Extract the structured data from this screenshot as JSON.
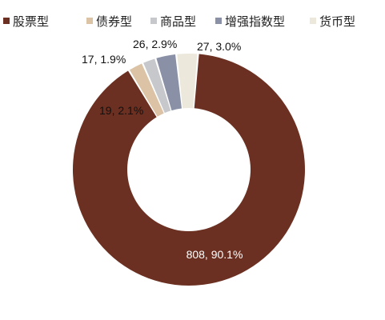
{
  "chart_data": {
    "type": "pie",
    "donut": true,
    "legend_position": "top",
    "series": [
      {
        "name": "股票型",
        "value": 808,
        "percent": "90.1%",
        "label": "808, 90.1%",
        "color": "#6b3021"
      },
      {
        "name": "债券型",
        "value": 19,
        "percent": "2.1%",
        "label": "19, 2.1%",
        "color": "#dcc3a6"
      },
      {
        "name": "商品型",
        "value": 17,
        "percent": "1.9%",
        "label": "17, 1.9%",
        "color": "#c6c8cb"
      },
      {
        "name": "增强指数型",
        "value": 26,
        "percent": "2.9%",
        "label": "26, 2.9%",
        "color": "#8a90a6"
      },
      {
        "name": "货币型",
        "value": 27,
        "percent": "3.0%",
        "label": "27, 3.0%",
        "color": "#ece8dc"
      }
    ]
  }
}
